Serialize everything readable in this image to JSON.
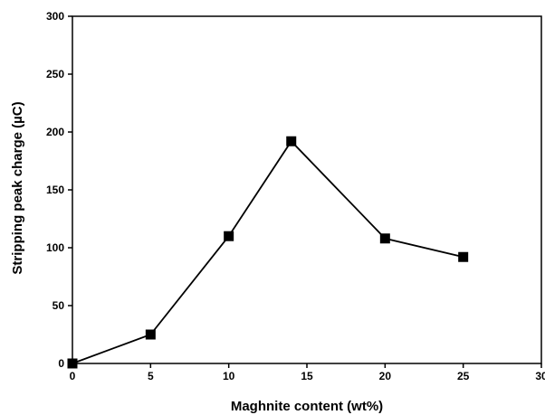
{
  "chart_data": {
    "type": "line",
    "title": "",
    "xlabel": "Maghnite content (wt%)",
    "ylabel": "Stripping peak charge (µC)",
    "xlim": [
      0,
      30
    ],
    "ylim": [
      0,
      300
    ],
    "xticks": [
      0,
      5,
      10,
      15,
      20,
      25,
      30
    ],
    "yticks": [
      0,
      50,
      100,
      150,
      200,
      250,
      300
    ],
    "xtick_labels": [
      "0",
      "5",
      "10",
      "15",
      "20",
      "25",
      "30"
    ],
    "ytick_labels": [
      "0",
      "50",
      "100",
      "150",
      "200",
      "250",
      "300"
    ],
    "grid": false,
    "legend": "none",
    "marker": "square",
    "color": "#000000",
    "series": [
      {
        "x": [
          0,
          5,
          10,
          14,
          20,
          25
        ],
        "y": [
          0,
          25,
          110,
          192,
          108,
          92
        ]
      }
    ]
  }
}
